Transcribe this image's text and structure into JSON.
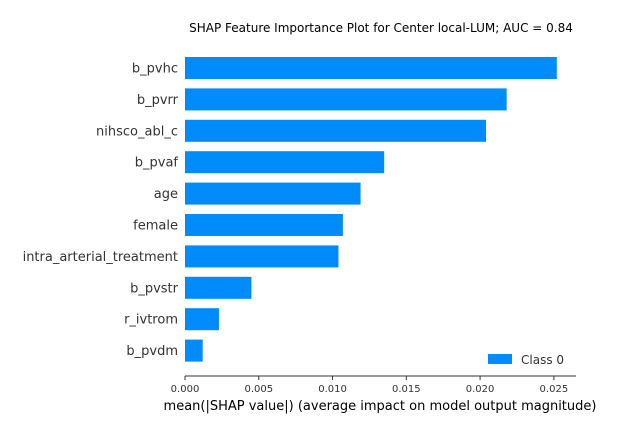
{
  "chart_data": {
    "type": "bar",
    "orientation": "horizontal",
    "title": "SHAP Feature Importance Plot for Center local-LUM; AUC = 0.84",
    "xlabel": "mean(|SHAP value|) (average impact on model output magnitude)",
    "ylabel": "",
    "categories": [
      "b_pvhc",
      "b_pvrr",
      "nihsco_abl_c",
      "b_pvaf",
      "age",
      "female",
      "intra_arterial_treatment",
      "b_pvstr",
      "r_ivtrom",
      "b_pvdm"
    ],
    "series": [
      {
        "name": "Class 0",
        "color": "#008bfb",
        "values": [
          0.0252,
          0.0218,
          0.0204,
          0.0135,
          0.0119,
          0.0107,
          0.0104,
          0.0045,
          0.0023,
          0.0012
        ]
      }
    ],
    "xlim": [
      0,
      0.0265
    ],
    "xticks": [
      0,
      0.005,
      0.01,
      0.015,
      0.02,
      0.025
    ],
    "xtick_labels": [
      "0.000",
      "0.005",
      "0.010",
      "0.015",
      "0.020",
      "0.025"
    ],
    "legend_position": "lower-right",
    "grid": false
  }
}
